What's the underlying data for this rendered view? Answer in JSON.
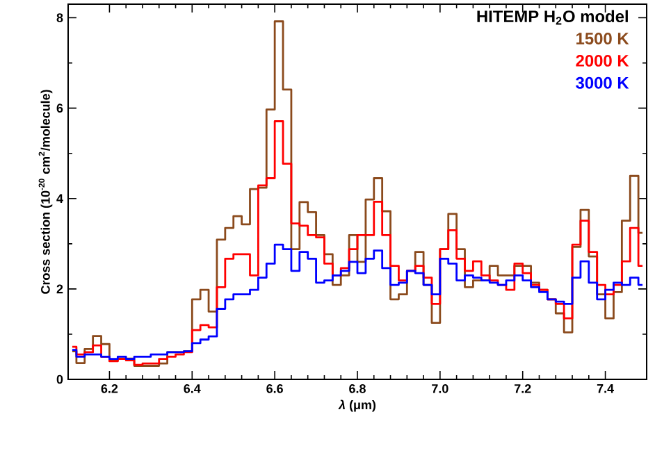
{
  "chart_data": {
    "type": "step",
    "xlabel": "*λ* (μm)",
    "ylabel": "Cross section (10$^{-20}$ cm$^{2}$/molecule)",
    "legend_title": "HITEMP H$_{2}$O model",
    "legend": "top right",
    "xlim": [
      6.1,
      7.5
    ],
    "ylim": [
      0,
      8.3
    ],
    "xticks": [
      6.2,
      6.4,
      6.6,
      6.8,
      {
        "value": 7.0,
        "label": "7.0"
      },
      7.2,
      7.4
    ],
    "yticks": [
      0,
      2,
      4,
      6,
      8
    ],
    "x": [
      6.11,
      6.13,
      6.15,
      6.17,
      6.19,
      6.21,
      6.23,
      6.25,
      6.27,
      6.29,
      6.31,
      6.33,
      6.35,
      6.37,
      6.39,
      6.41,
      6.43,
      6.45,
      6.47,
      6.49,
      6.51,
      6.53,
      6.55,
      6.57,
      6.59,
      6.61,
      6.63,
      6.65,
      6.67,
      6.69,
      6.71,
      6.73,
      6.75,
      6.77,
      6.79,
      6.81,
      6.83,
      6.85,
      6.87,
      6.89,
      6.91,
      6.93,
      6.95,
      6.97,
      6.99,
      7.01,
      7.03,
      7.05,
      7.07,
      7.09,
      7.11,
      7.13,
      7.15,
      7.17,
      7.19,
      7.21,
      7.23,
      7.25,
      7.27,
      7.29,
      7.31,
      7.33,
      7.35,
      7.37,
      7.39,
      7.41,
      7.43,
      7.45,
      7.47,
      7.49
    ],
    "series": [
      {
        "name": "1500 K",
        "color": "#8b4a1c",
        "values": [
          0.62,
          0.36,
          0.67,
          0.96,
          0.78,
          0.41,
          0.46,
          0.46,
          0.3,
          0.3,
          0.3,
          0.35,
          0.6,
          0.6,
          0.62,
          1.77,
          1.98,
          1.5,
          3.09,
          3.35,
          3.61,
          3.43,
          4.21,
          4.24,
          5.97,
          7.92,
          6.41,
          2.88,
          3.92,
          3.7,
          3.19,
          2.77,
          2.09,
          2.3,
          3.19,
          2.6,
          3.98,
          4.45,
          3.72,
          1.77,
          1.88,
          2.4,
          2.82,
          2.09,
          1.25,
          2.88,
          3.66,
          2.88,
          2.04,
          2.19,
          2.19,
          2.51,
          2.3,
          2.3,
          2.51,
          2.51,
          2.14,
          1.98,
          1.77,
          1.46,
          1.04,
          2.93,
          3.75,
          2.72,
          1.88,
          1.35,
          1.93,
          3.51,
          4.5,
          3.24
        ]
      },
      {
        "name": "2000 K",
        "color": "#ff0000",
        "values": [
          0.72,
          0.55,
          0.6,
          0.75,
          0.5,
          0.4,
          0.45,
          0.42,
          0.32,
          0.35,
          0.35,
          0.45,
          0.5,
          0.55,
          0.6,
          1.09,
          1.2,
          1.15,
          2.04,
          2.67,
          2.77,
          2.77,
          2.3,
          4.29,
          4.45,
          5.71,
          4.77,
          3.45,
          3.4,
          3.19,
          3.14,
          2.56,
          2.3,
          2.46,
          2.88,
          3.19,
          3.19,
          3.93,
          3.19,
          2.51,
          2.19,
          2.4,
          2.51,
          2.25,
          1.67,
          2.88,
          3.3,
          2.67,
          2.4,
          2.61,
          2.3,
          2.19,
          2.09,
          1.98,
          2.56,
          2.35,
          2.09,
          1.98,
          1.77,
          1.67,
          1.35,
          2.98,
          3.51,
          2.82,
          2.09,
          1.88,
          2.09,
          2.61,
          3.35,
          2.51
        ]
      },
      {
        "name": "3000 K",
        "color": "#0000ff",
        "values": [
          0.65,
          0.5,
          0.55,
          0.55,
          0.5,
          0.45,
          0.5,
          0.45,
          0.5,
          0.5,
          0.55,
          0.55,
          0.6,
          0.6,
          0.62,
          0.8,
          0.88,
          0.95,
          1.56,
          1.77,
          1.88,
          1.88,
          1.98,
          2.25,
          2.56,
          2.98,
          2.88,
          2.4,
          2.82,
          2.67,
          2.14,
          2.19,
          2.3,
          2.4,
          2.6,
          2.35,
          2.67,
          2.85,
          2.46,
          2.09,
          2.14,
          2.4,
          2.35,
          2.09,
          1.88,
          2.67,
          2.56,
          2.19,
          2.3,
          2.25,
          2.19,
          2.14,
          2.09,
          2.19,
          2.3,
          2.19,
          2.04,
          1.93,
          1.77,
          1.72,
          1.67,
          2.25,
          2.61,
          2.14,
          1.77,
          1.98,
          2.14,
          2.09,
          2.25,
          2.09
        ]
      }
    ]
  }
}
